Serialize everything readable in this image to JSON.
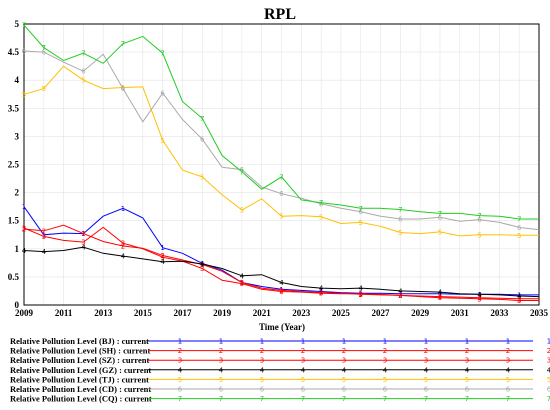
{
  "chart_data": {
    "type": "line",
    "title": "RPL",
    "xlabel": "Time (Year)",
    "ylabel": "",
    "xlim": [
      2009,
      2035
    ],
    "ylim": [
      0,
      5
    ],
    "x_ticks": [
      "2009",
      "2011",
      "2013",
      "2015",
      "2017",
      "2019",
      "2021",
      "2023",
      "2025",
      "2027",
      "2029",
      "2031",
      "2033",
      "2035"
    ],
    "y_ticks": [
      "0",
      "0.5",
      "1",
      "1.5",
      "2",
      "2.5",
      "3",
      "3.5",
      "4",
      "4.5",
      "5"
    ],
    "grid": true,
    "legend_position": "bottom",
    "x": [
      2009,
      2010,
      2011,
      2012,
      2013,
      2014,
      2015,
      2016,
      2017,
      2018,
      2019,
      2020,
      2021,
      2022,
      2023,
      2024,
      2025,
      2026,
      2027,
      2028,
      2029,
      2030,
      2031,
      2032,
      2033,
      2034,
      2035
    ],
    "series": [
      {
        "name": "Relative Pollution Level (BJ) : current",
        "marker": "1",
        "color": "#0000ff",
        "values": [
          1.75,
          1.25,
          1.28,
          1.27,
          1.58,
          1.72,
          1.55,
          1.02,
          0.92,
          0.74,
          0.62,
          0.4,
          0.33,
          0.28,
          0.26,
          0.24,
          0.22,
          0.21,
          0.21,
          0.2,
          0.2,
          0.2,
          0.19,
          0.19,
          0.19,
          0.18,
          0.18
        ]
      },
      {
        "name": "Relative Pollution Level (SH) : current",
        "marker": "2",
        "color": "#ff0000",
        "values": [
          1.35,
          1.32,
          1.42,
          1.27,
          1.13,
          1.05,
          1.01,
          0.88,
          0.8,
          0.72,
          0.6,
          0.4,
          0.3,
          0.26,
          0.24,
          0.22,
          0.21,
          0.19,
          0.18,
          0.17,
          0.16,
          0.15,
          0.14,
          0.13,
          0.12,
          0.11,
          0.11
        ]
      },
      {
        "name": "Relative Pollution Level (SZ) : current",
        "marker": "3",
        "color": "#ff0000",
        "values": [
          1.37,
          1.22,
          1.15,
          1.12,
          1.38,
          1.1,
          1.0,
          0.85,
          0.78,
          0.65,
          0.44,
          0.38,
          0.28,
          0.24,
          0.23,
          0.21,
          0.2,
          0.2,
          0.19,
          0.17,
          0.15,
          0.13,
          0.12,
          0.11,
          0.1,
          0.08,
          0.08
        ]
      },
      {
        "name": "Relative Pollution Level (GZ) : current",
        "marker": "4",
        "color": "#000000",
        "values": [
          0.97,
          0.95,
          0.97,
          1.03,
          0.92,
          0.87,
          0.82,
          0.77,
          0.78,
          0.73,
          0.65,
          0.52,
          0.54,
          0.4,
          0.33,
          0.3,
          0.29,
          0.3,
          0.28,
          0.25,
          0.24,
          0.23,
          0.2,
          0.19,
          0.18,
          0.16,
          0.15
        ]
      },
      {
        "name": "Relative Pollution Level (TJ) : current",
        "marker": "5",
        "color": "#ffc000",
        "values": [
          3.75,
          3.85,
          4.25,
          4.0,
          3.85,
          3.87,
          3.88,
          2.93,
          2.4,
          2.28,
          1.96,
          1.69,
          1.89,
          1.58,
          1.59,
          1.57,
          1.45,
          1.47,
          1.4,
          1.29,
          1.27,
          1.3,
          1.23,
          1.25,
          1.25,
          1.24,
          1.24
        ]
      },
      {
        "name": "Relative Pollution Level (CD) : current",
        "marker": "6",
        "color": "#aaaaaa",
        "values": [
          4.52,
          4.5,
          4.32,
          4.16,
          4.46,
          3.85,
          3.26,
          3.77,
          3.3,
          2.95,
          2.45,
          2.41,
          2.1,
          1.98,
          1.9,
          1.8,
          1.72,
          1.66,
          1.58,
          1.53,
          1.53,
          1.56,
          1.49,
          1.52,
          1.47,
          1.38,
          1.34
        ]
      },
      {
        "name": "Relative Pollution Level (CQ) : current",
        "marker": "7",
        "color": "#22cc22",
        "values": [
          4.98,
          4.58,
          4.35,
          4.48,
          4.3,
          4.65,
          4.78,
          4.48,
          3.62,
          3.32,
          2.66,
          2.37,
          2.06,
          2.28,
          1.87,
          1.82,
          1.78,
          1.72,
          1.72,
          1.7,
          1.66,
          1.63,
          1.63,
          1.59,
          1.58,
          1.53,
          1.53
        ]
      }
    ]
  }
}
